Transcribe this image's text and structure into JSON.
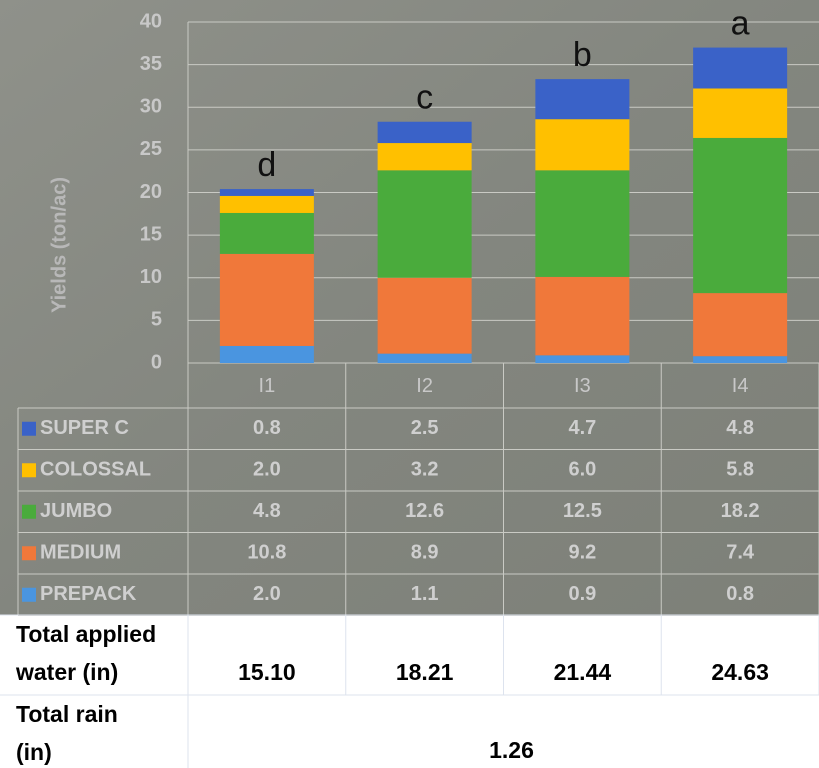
{
  "chart_data": {
    "type": "stacked_bar",
    "y_label": "Yields (ton/ac)",
    "categories": [
      "I1",
      "I2",
      "I3",
      "I4"
    ],
    "annotations": [
      "d",
      "c",
      "b",
      "a"
    ],
    "series": [
      {
        "name": "PREPACK",
        "color": "#4a95e0",
        "values": [
          2.0,
          1.1,
          0.9,
          0.8
        ],
        "value_labels": [
          "2.0",
          "1.1",
          "0.9",
          "0.8"
        ]
      },
      {
        "name": "MEDIUM",
        "color": "#f0783a",
        "values": [
          10.8,
          8.9,
          9.2,
          7.4
        ],
        "value_labels": [
          "10.8",
          "8.9",
          "9.2",
          "7.4"
        ]
      },
      {
        "name": "JUMBO",
        "color": "#4aab3c",
        "values": [
          4.8,
          12.6,
          12.5,
          18.2
        ],
        "value_labels": [
          "4.8",
          "12.6",
          "12.5",
          "18.2"
        ]
      },
      {
        "name": "COLOSSAL",
        "color": "#ffc000",
        "values": [
          2.0,
          3.2,
          6.0,
          5.8
        ],
        "value_labels": [
          "2.0",
          "3.2",
          "6.0",
          "5.8"
        ]
      },
      {
        "name": "SUPER C",
        "color": "#3a62c8",
        "values": [
          0.8,
          2.5,
          4.7,
          4.8
        ],
        "value_labels": [
          "0.8",
          "2.5",
          "4.7",
          "4.8"
        ]
      }
    ],
    "ylim": [
      0,
      40
    ],
    "yticks": [
      0,
      5,
      10,
      15,
      20,
      25,
      30,
      35,
      40
    ],
    "grid": true
  },
  "footer_table": {
    "rows": [
      {
        "label": [
          "Total applied",
          "water (in)"
        ],
        "values": [
          "15.10",
          "18.21",
          "21.44",
          "24.63"
        ]
      },
      {
        "label": [
          "Total rain",
          "(in)"
        ],
        "values": [
          "1.26"
        ]
      }
    ]
  }
}
